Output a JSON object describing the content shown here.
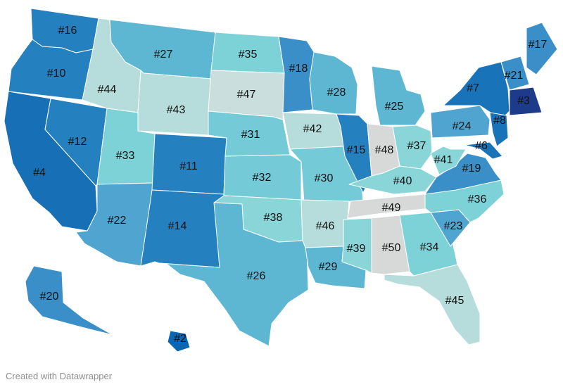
{
  "footer": {
    "credit": "Created with Datawrapper"
  },
  "color_scale": {
    "r1": "#1d3b8a",
    "r2": "#0a66b2",
    "r3": "#176fb5",
    "r4": "#1873b8",
    "r5": "#2580bf",
    "r6": "#3b8fc8",
    "r7": "#4fa5cf",
    "r8": "#5db7d3",
    "r9": "#74cad6",
    "r10": "#7dd2d8",
    "r11": "#8ad5d8",
    "r12": "#b7dcdc",
    "r13": "#c9dedd",
    "r14": "#d6d9d8"
  },
  "states": [
    {
      "id": "WA",
      "rank": "#16",
      "level": "r5"
    },
    {
      "id": "OR",
      "rank": "#10",
      "level": "r5"
    },
    {
      "id": "CA",
      "rank": "#4",
      "level": "r3"
    },
    {
      "id": "NV",
      "rank": "#12",
      "level": "r5"
    },
    {
      "id": "ID",
      "rank": "#44",
      "level": "r12"
    },
    {
      "id": "MT",
      "rank": "#27",
      "level": "r8"
    },
    {
      "id": "WY",
      "rank": "#43",
      "level": "r12"
    },
    {
      "id": "UT",
      "rank": "#33",
      "level": "r10"
    },
    {
      "id": "AZ",
      "rank": "#22",
      "level": "r7"
    },
    {
      "id": "CO",
      "rank": "#11",
      "level": "r5"
    },
    {
      "id": "NM",
      "rank": "#14",
      "level": "r5"
    },
    {
      "id": "ND",
      "rank": "#35",
      "level": "r10"
    },
    {
      "id": "SD",
      "rank": "#47",
      "level": "r13"
    },
    {
      "id": "NE",
      "rank": "#31",
      "level": "r9"
    },
    {
      "id": "KS",
      "rank": "#32",
      "level": "r9"
    },
    {
      "id": "OK",
      "rank": "#38",
      "level": "r11"
    },
    {
      "id": "TX",
      "rank": "#26",
      "level": "r8"
    },
    {
      "id": "MN",
      "rank": "#18",
      "level": "r6"
    },
    {
      "id": "IA",
      "rank": "#42",
      "level": "r12"
    },
    {
      "id": "MO",
      "rank": "#30",
      "level": "r9"
    },
    {
      "id": "AR",
      "rank": "#46",
      "level": "r12"
    },
    {
      "id": "LA",
      "rank": "#29",
      "level": "r8"
    },
    {
      "id": "WI",
      "rank": "#28",
      "level": "r8"
    },
    {
      "id": "IL",
      "rank": "#15",
      "level": "r5"
    },
    {
      "id": "MI",
      "rank": "#25",
      "level": "r8"
    },
    {
      "id": "IN",
      "rank": "#48",
      "level": "r14"
    },
    {
      "id": "OH",
      "rank": "#37",
      "level": "r11"
    },
    {
      "id": "KY",
      "rank": "#40",
      "level": "r11"
    },
    {
      "id": "TN",
      "rank": "#49",
      "level": "r14"
    },
    {
      "id": "MS",
      "rank": "#39",
      "level": "r11"
    },
    {
      "id": "AL",
      "rank": "#50",
      "level": "r14"
    },
    {
      "id": "GA",
      "rank": "#34",
      "level": "r10"
    },
    {
      "id": "FL",
      "rank": "#45",
      "level": "r12"
    },
    {
      "id": "SC",
      "rank": "#23",
      "level": "r7"
    },
    {
      "id": "NC",
      "rank": "#36",
      "level": "r10"
    },
    {
      "id": "VA",
      "rank": "#19",
      "level": "r6"
    },
    {
      "id": "WV",
      "rank": "#41",
      "level": "r11"
    },
    {
      "id": "PA",
      "rank": "#24",
      "level": "r7"
    },
    {
      "id": "NY",
      "rank": "#7",
      "level": "r4"
    },
    {
      "id": "NJ",
      "rank": "#8",
      "level": "r4"
    },
    {
      "id": "MD",
      "rank": "#6",
      "level": "r4"
    },
    {
      "id": "VT",
      "rank": "#21",
      "level": "r6"
    },
    {
      "id": "ME",
      "rank": "#17",
      "level": "r6"
    },
    {
      "id": "MA",
      "rank": "#3",
      "level": "r1"
    },
    {
      "id": "AK",
      "rank": "#20",
      "level": "r6"
    },
    {
      "id": "HI",
      "rank": "#2",
      "level": "r2"
    }
  ]
}
